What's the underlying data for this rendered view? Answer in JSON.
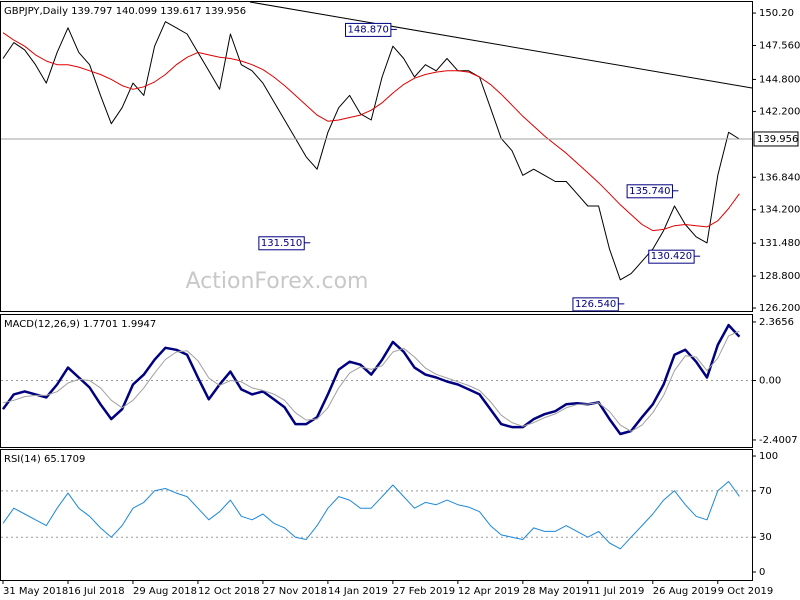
{
  "chart_data": [
    {
      "type": "line",
      "title": "GBPJPY,Daily  139.797 140.099 139.617 139.956",
      "watermark": "ActionForex.com",
      "ylim": [
        125.96,
        151.1
      ],
      "yticks": [
        {
          "value": 150.2,
          "label": "150.20"
        },
        {
          "value": 147.56,
          "label": "147.560"
        },
        {
          "value": 144.8,
          "label": "144.800"
        },
        {
          "value": 142.2,
          "label": "142.200"
        },
        {
          "value": 136.84,
          "label": "136.840"
        },
        {
          "value": 134.2,
          "label": "134.200"
        },
        {
          "value": 131.48,
          "label": "131.480"
        },
        {
          "value": 128.8,
          "label": "128.800"
        },
        {
          "value": 126.2,
          "label": "126.200"
        }
      ],
      "last_value": 139.956,
      "series": [
        {
          "color": "#000000",
          "line_width": 1,
          "values": [
            146.5,
            147.8,
            147.2,
            146.0,
            144.5,
            147.0,
            149.0,
            147.0,
            146.0,
            143.5,
            141.2,
            142.5,
            144.5,
            143.5,
            147.5,
            149.5,
            149.0,
            148.5,
            147.0,
            145.5,
            144.0,
            148.5,
            146.0,
            145.5,
            144.5,
            143.0,
            141.5,
            140.0,
            138.5,
            137.5,
            140.5,
            142.5,
            143.5,
            142.0,
            141.5,
            145.0,
            147.5,
            146.5,
            145.0,
            146.0,
            145.5,
            146.5,
            145.5,
            145.5,
            145.0,
            142.5,
            140.0,
            139.0,
            137.0,
            137.5,
            137.0,
            136.5,
            136.5,
            135.5,
            134.5,
            134.5,
            131.0,
            128.5,
            129.0,
            130.0,
            131.0,
            132.5,
            134.5,
            133.0,
            132.0,
            131.5,
            137.0,
            140.5,
            139.956
          ]
        },
        {
          "color": "#e00000",
          "line_width": 1,
          "values": [
            148.6,
            148.0,
            147.5,
            146.8,
            146.3,
            146.0,
            146.0,
            145.8,
            145.5,
            145.2,
            144.8,
            144.3,
            144.0,
            144.2,
            144.6,
            145.2,
            146.0,
            146.6,
            147.0,
            146.8,
            146.6,
            146.5,
            146.3,
            146.0,
            145.6,
            145.0,
            144.3,
            143.5,
            142.7,
            141.9,
            141.4,
            141.5,
            141.7,
            141.9,
            142.3,
            142.9,
            143.7,
            144.4,
            144.9,
            145.2,
            145.4,
            145.5,
            145.5,
            145.4,
            145.0,
            144.4,
            143.6,
            142.7,
            141.8,
            141.0,
            140.2,
            139.5,
            138.8,
            138.0,
            137.2,
            136.4,
            135.5,
            134.6,
            133.8,
            133.0,
            132.5,
            132.6,
            132.9,
            133.0,
            132.9,
            132.8,
            133.3,
            134.3,
            135.5
          ]
        }
      ],
      "annotations": [
        {
          "value": 148.87,
          "label": "148.870",
          "at": 36
        },
        {
          "value": 131.51,
          "label": "131.510",
          "at": 28
        },
        {
          "value": 135.74,
          "label": "135.740",
          "at": 62
        },
        {
          "value": 130.42,
          "label": "130.420",
          "at": 64
        },
        {
          "value": 126.54,
          "label": "126.540",
          "at": 57
        }
      ]
    },
    {
      "type": "line",
      "title": "MACD(12,26,9) 1.7701 1.9947",
      "ylim": [
        -2.685,
        2.646
      ],
      "yticks": [
        2.3656,
        {
          "value": 0,
          "label": "0.00"
        },
        -2.4007
      ],
      "levels": [
        0
      ],
      "series": [
        {
          "color": "#000080",
          "line_width": 2.5,
          "values": [
            -1.16,
            -0.56,
            -0.44,
            -0.56,
            -0.68,
            -0.16,
            0.52,
            0.12,
            -0.28,
            -0.96,
            -1.56,
            -1.16,
            -0.16,
            0.24,
            0.84,
            1.32,
            1.24,
            1.04,
            0.12,
            -0.76,
            -0.16,
            0.36,
            -0.36,
            -0.56,
            -0.44,
            -0.76,
            -1.08,
            -1.76,
            -1.76,
            -1.48,
            -0.56,
            0.44,
            0.76,
            0.64,
            0.24,
            0.84,
            1.56,
            1.16,
            0.52,
            0.24,
            0.12,
            -0.04,
            -0.16,
            -0.36,
            -0.56,
            -1.16,
            -1.76,
            -1.88,
            -1.88,
            -1.56,
            -1.36,
            -1.24,
            -0.96,
            -0.92,
            -0.96,
            -0.88,
            -1.56,
            -2.16,
            -2.04,
            -1.48,
            -0.96,
            -0.16,
            1.04,
            1.24,
            0.76,
            0.12,
            1.44,
            2.24,
            1.7701
          ]
        },
        {
          "color": "#a0a0a0",
          "line_width": 1,
          "values": [
            -0.9,
            -0.8,
            -0.65,
            -0.6,
            -0.6,
            -0.45,
            -0.1,
            0.05,
            0,
            -0.3,
            -0.8,
            -1.1,
            -0.8,
            -0.3,
            0.3,
            0.85,
            1.15,
            1.2,
            0.8,
            0.1,
            -0.2,
            0.0,
            -0.05,
            -0.3,
            -0.4,
            -0.55,
            -0.8,
            -1.3,
            -1.6,
            -1.55,
            -1.1,
            -0.3,
            0.3,
            0.55,
            0.45,
            0.6,
            1.15,
            1.3,
            0.95,
            0.5,
            0.25,
            0.1,
            -0.05,
            -0.2,
            -0.4,
            -0.85,
            -1.4,
            -1.7,
            -1.85,
            -1.7,
            -1.5,
            -1.35,
            -1.1,
            -0.97,
            -0.95,
            -0.9,
            -1.25,
            -1.8,
            -2.05,
            -1.8,
            -1.3,
            -0.6,
            0.4,
            1.0,
            0.95,
            0.4,
            0.9,
            1.8,
            1.9947
          ]
        }
      ]
    },
    {
      "type": "line",
      "title": "RSI(14) 65.1709",
      "ylim": [
        -6.9,
        105.2
      ],
      "yticks": [
        100,
        70,
        30,
        0
      ],
      "levels": [
        70,
        30
      ],
      "categories": [
        "31 May 2018",
        null,
        null,
        null,
        null,
        null,
        "16 Jul 2018",
        null,
        null,
        null,
        null,
        null,
        "29 Aug 2018",
        null,
        null,
        null,
        null,
        null,
        "12 Oct 2018",
        null,
        null,
        null,
        null,
        null,
        "27 Nov 2018",
        null,
        null,
        null,
        null,
        null,
        "14 Jan 2019",
        null,
        null,
        null,
        null,
        null,
        "27 Feb 2019",
        null,
        null,
        null,
        null,
        null,
        "12 Apr 2019",
        null,
        null,
        null,
        null,
        null,
        "28 May 2019",
        null,
        null,
        null,
        null,
        null,
        "11 Jul 2019",
        null,
        null,
        null,
        null,
        null,
        "26 Aug 2019",
        null,
        null,
        null,
        null,
        null,
        "9 Oct 2019",
        null,
        null
      ],
      "series": [
        {
          "color": "#1e88d8",
          "line_width": 1,
          "values": [
            42,
            55,
            50,
            45,
            40,
            55,
            68,
            55,
            48,
            38,
            30,
            40,
            55,
            60,
            70,
            72,
            68,
            65,
            55,
            45,
            52,
            62,
            48,
            45,
            50,
            42,
            38,
            30,
            28,
            40,
            55,
            65,
            62,
            55,
            55,
            65,
            75,
            65,
            55,
            60,
            58,
            62,
            58,
            56,
            52,
            40,
            32,
            30,
            28,
            38,
            35,
            35,
            40,
            35,
            30,
            35,
            25,
            20,
            30,
            40,
            50,
            62,
            70,
            58,
            48,
            45,
            70,
            78,
            65.1709
          ]
        }
      ]
    }
  ]
}
